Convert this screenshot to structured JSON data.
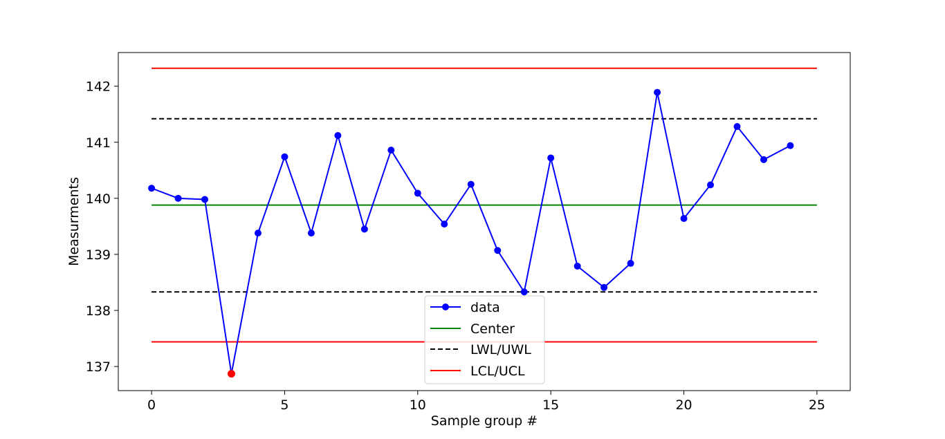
{
  "chart_data": {
    "type": "line",
    "title": "",
    "xlabel": "Sample group #",
    "ylabel": "Measurments",
    "xlim": [
      -1.25,
      26.25
    ],
    "ylim": [
      136.57,
      142.6
    ],
    "xticks": [
      0,
      5,
      10,
      15,
      20,
      25
    ],
    "yticks": [
      137,
      138,
      139,
      140,
      141,
      142
    ],
    "grid": false,
    "legend_position": "lower-center",
    "series": [
      {
        "name": "data",
        "style": "line-with-markers",
        "color": "#0000ff",
        "x": [
          0,
          1,
          2,
          3,
          4,
          5,
          6,
          7,
          8,
          9,
          10,
          11,
          12,
          13,
          14,
          15,
          16,
          17,
          18,
          19,
          20,
          21,
          22,
          23,
          24
        ],
        "y": [
          140.18,
          140.0,
          139.98,
          136.87,
          139.38,
          140.74,
          139.38,
          141.12,
          139.45,
          140.86,
          140.09,
          139.54,
          140.25,
          139.07,
          138.33,
          140.72,
          138.79,
          138.41,
          138.84,
          141.89,
          139.64,
          140.24,
          141.28,
          140.69,
          140.94
        ]
      },
      {
        "name": "Center",
        "style": "solid",
        "color": "#008000",
        "x": [
          0,
          25
        ],
        "y": [
          139.88,
          139.88
        ]
      },
      {
        "name": "LWL/UWL",
        "style": "dashed",
        "color": "#000000",
        "x": [
          0,
          25
        ],
        "y": [
          138.33,
          138.33
        ],
        "y2": [
          141.42,
          141.42
        ]
      },
      {
        "name": "LCL/UCL",
        "style": "solid",
        "color": "#ff0000",
        "x": [
          0,
          25
        ],
        "y": [
          137.44,
          137.44
        ],
        "y2": [
          142.32,
          142.32
        ]
      }
    ],
    "out_of_control_points": [
      {
        "x": 3,
        "y": 136.87,
        "color": "#ff0000"
      }
    ]
  }
}
